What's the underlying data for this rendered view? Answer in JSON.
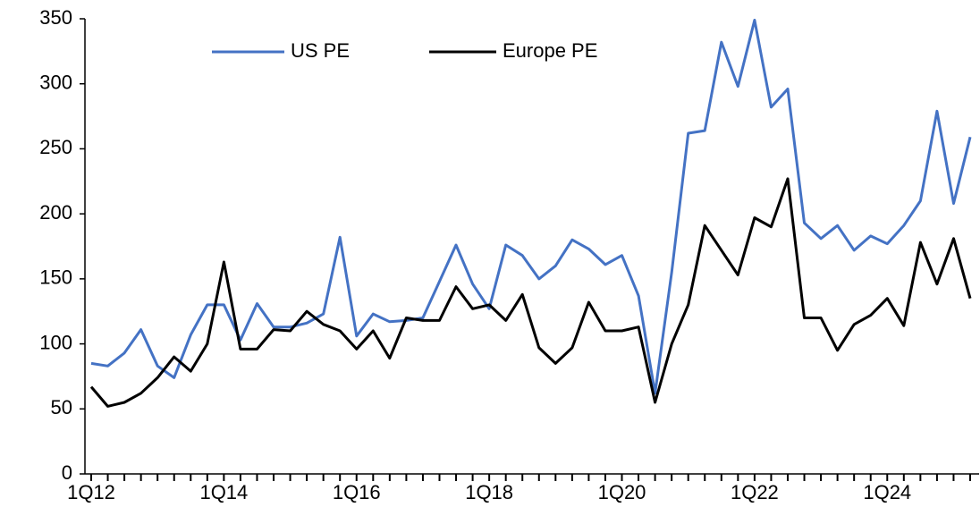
{
  "chart_data": {
    "type": "line",
    "categories": [
      "1Q12",
      null,
      null,
      null,
      null,
      null,
      null,
      null,
      "1Q14",
      null,
      null,
      null,
      null,
      null,
      null,
      null,
      "1Q16",
      null,
      null,
      null,
      null,
      null,
      null,
      null,
      "1Q18",
      null,
      null,
      null,
      null,
      null,
      null,
      null,
      "1Q20",
      null,
      null,
      null,
      null,
      null,
      null,
      null,
      "1Q22",
      null,
      null,
      null,
      null,
      null,
      null,
      null,
      "1Q24",
      null,
      null,
      null,
      null,
      null
    ],
    "series": [
      {
        "name": "US PE",
        "color": "#4472c4",
        "values": [
          85,
          83,
          93,
          111,
          83,
          74,
          107,
          130,
          130,
          103,
          131,
          113,
          113,
          116,
          123,
          182,
          106,
          123,
          117,
          118,
          120,
          148,
          176,
          146,
          127,
          176,
          168,
          150,
          160,
          180,
          173,
          161,
          168,
          137,
          62,
          155,
          262,
          264,
          332,
          298,
          349,
          282,
          296,
          193,
          181,
          191,
          172,
          183,
          177,
          191,
          210,
          279,
          208,
          259
        ]
      },
      {
        "name": "Europe PE",
        "color": "#000000",
        "values": [
          67,
          52,
          55,
          62,
          74,
          90,
          79,
          100,
          163,
          96,
          96,
          111,
          110,
          125,
          115,
          110,
          96,
          110,
          89,
          120,
          118,
          118,
          144,
          127,
          130,
          118,
          138,
          97,
          85,
          97,
          132,
          110,
          110,
          113,
          55,
          100,
          130,
          191,
          172,
          153,
          197,
          190,
          227,
          120,
          120,
          95,
          115,
          122,
          135,
          114,
          178,
          146,
          181,
          135
        ]
      }
    ],
    "ylim": [
      0,
      350
    ],
    "yticks": [
      0,
      50,
      100,
      150,
      200,
      250,
      300,
      350
    ],
    "legend": "top"
  }
}
